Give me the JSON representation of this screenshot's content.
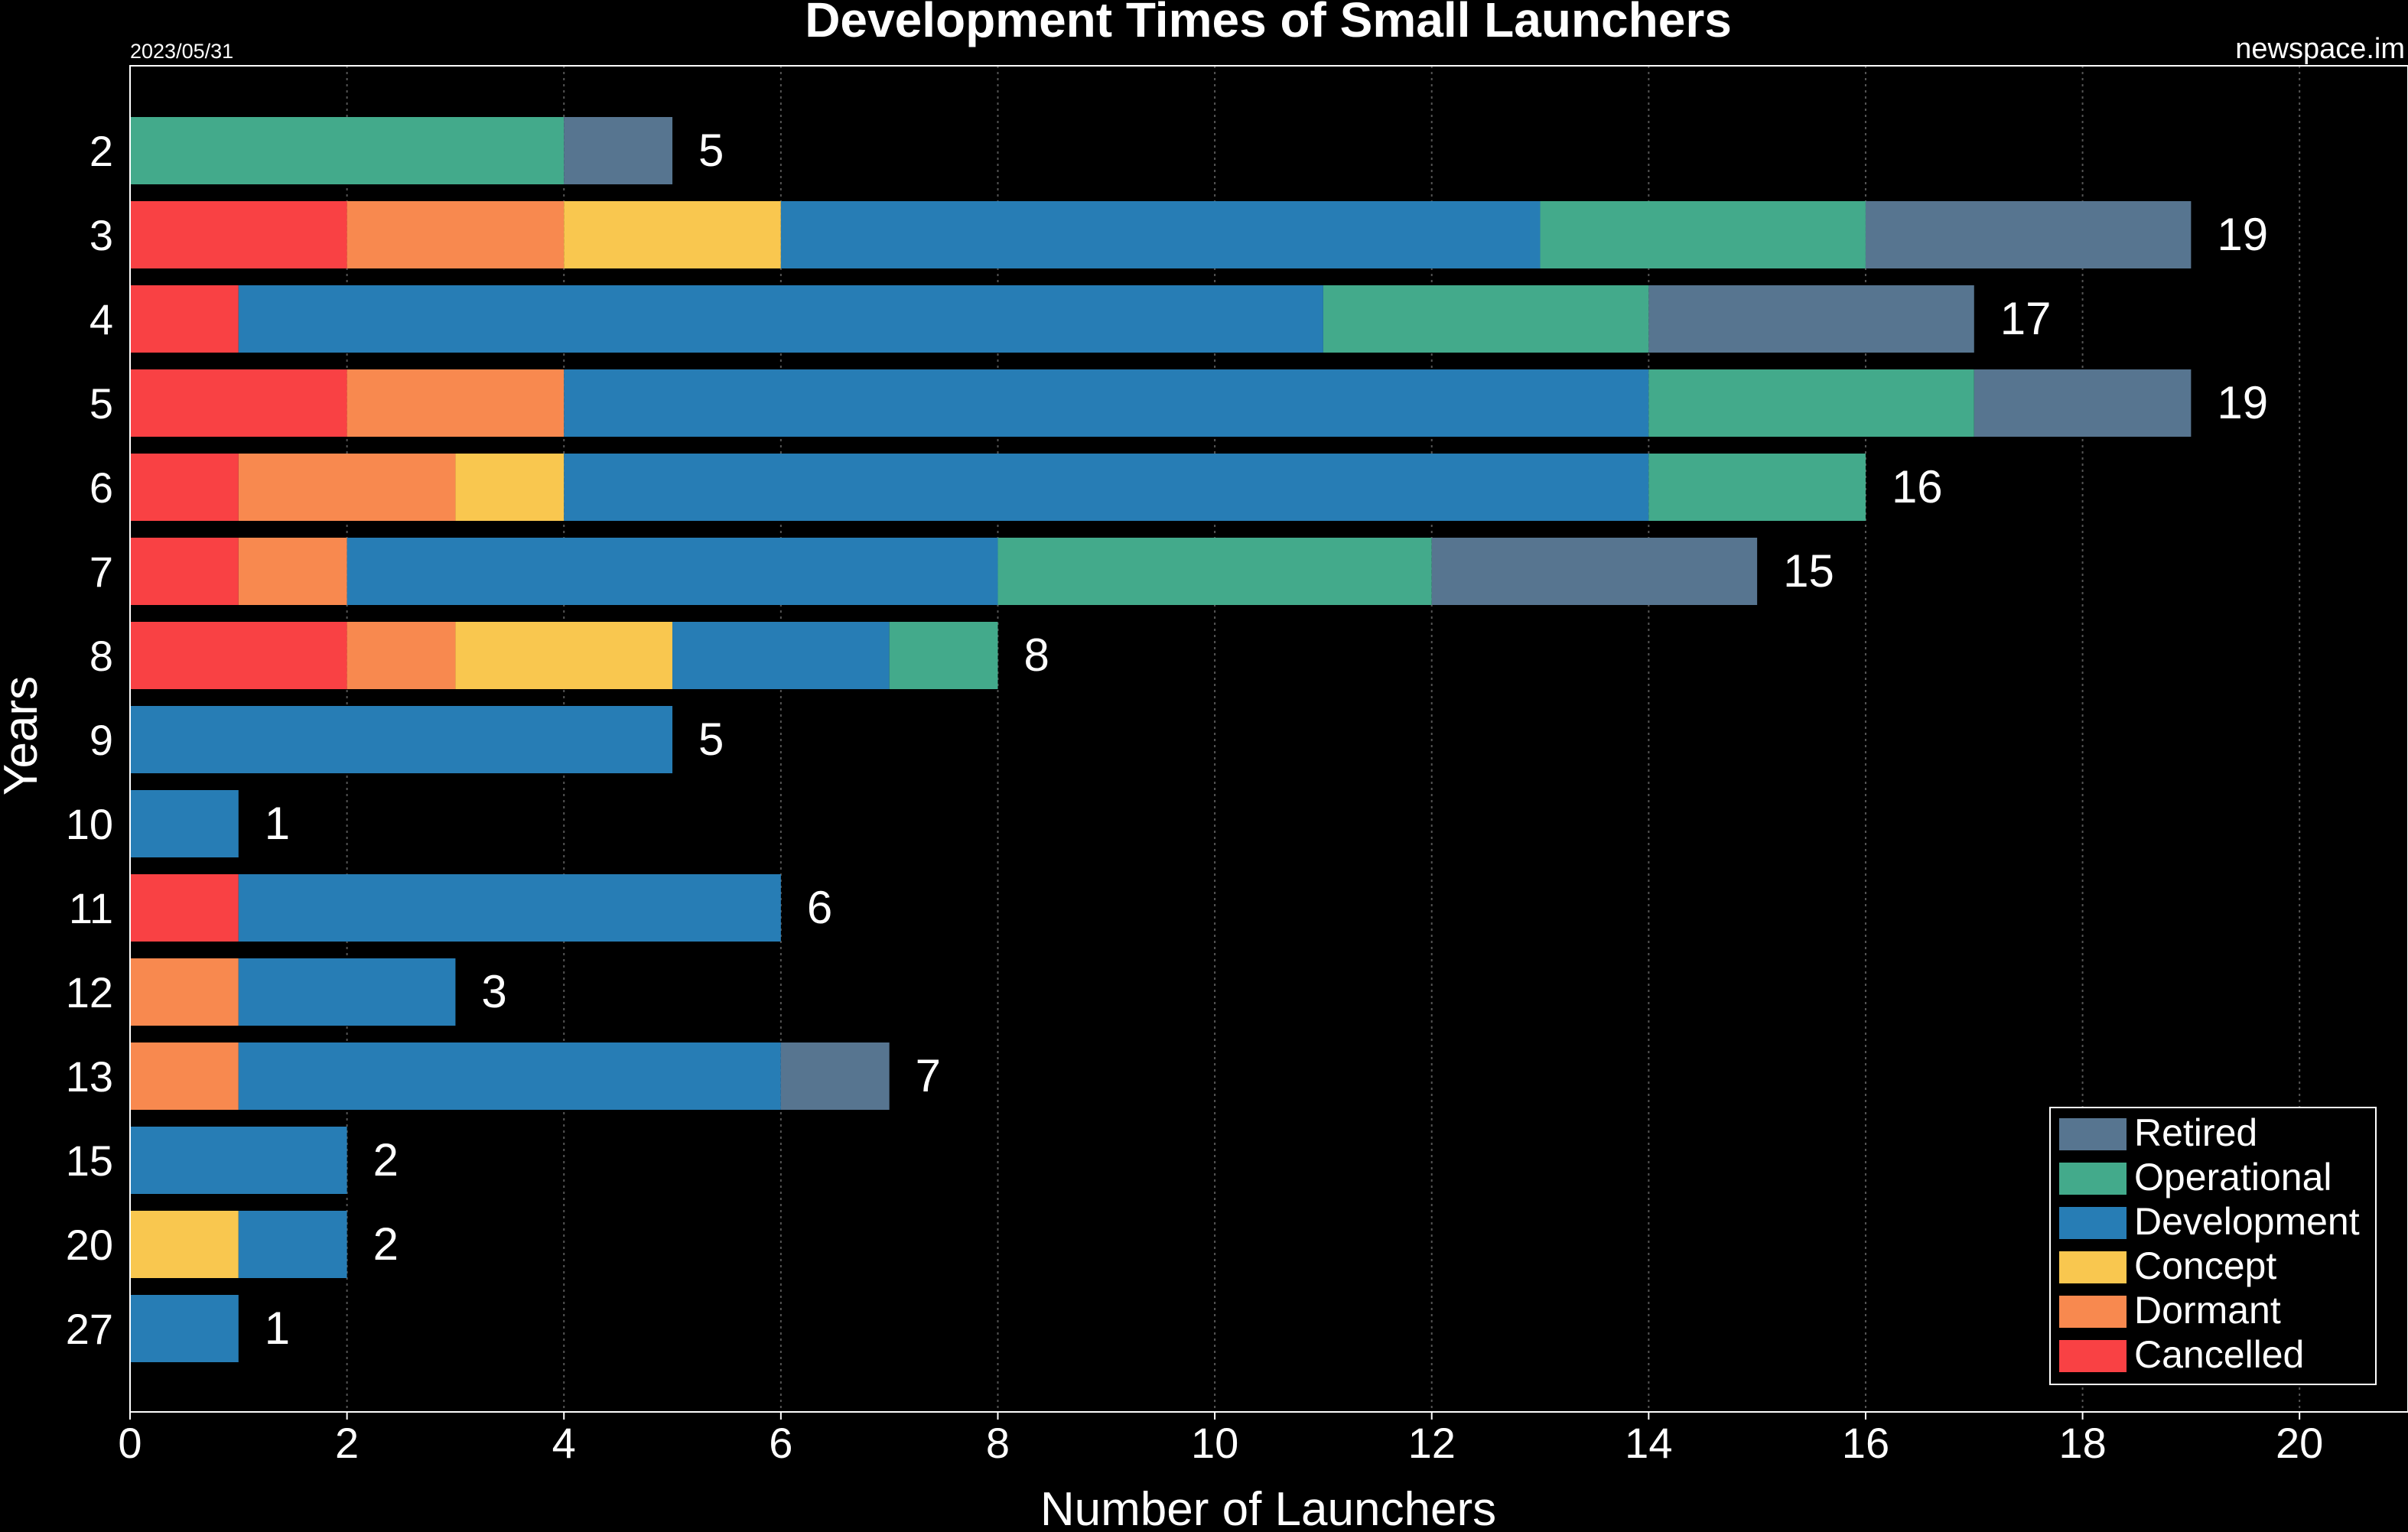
{
  "chart_data": {
    "type": "bar",
    "orientation": "horizontal",
    "stacked": true,
    "title": "Development Times of Small Launchers",
    "date_note": "2023/05/31",
    "source_note": "newspace.im",
    "xlabel": "Number of Launchers",
    "ylabel": "Years",
    "xlim": [
      0,
      21
    ],
    "x_ticks": [
      0,
      2,
      4,
      6,
      8,
      10,
      12,
      14,
      16,
      18,
      20
    ],
    "grid": "vertical",
    "legend_position": "bottom-right",
    "categories": [
      "2",
      "3",
      "4",
      "5",
      "6",
      "7",
      "8",
      "9",
      "10",
      "11",
      "12",
      "13",
      "15",
      "20",
      "27"
    ],
    "series": [
      {
        "name": "Cancelled",
        "color": "#f94144",
        "values": [
          0,
          2,
          1,
          2,
          1,
          1,
          2,
          0,
          0,
          1,
          0,
          0,
          0,
          0,
          0
        ]
      },
      {
        "name": "Dormant",
        "color": "#f8894f",
        "values": [
          0,
          2,
          0,
          2,
          2,
          1,
          1,
          0,
          0,
          0,
          1,
          1,
          0,
          0,
          0
        ]
      },
      {
        "name": "Concept",
        "color": "#f9c74f",
        "values": [
          0,
          2,
          0,
          0,
          1,
          0,
          2,
          0,
          0,
          0,
          0,
          0,
          0,
          1,
          0
        ]
      },
      {
        "name": "Development",
        "color": "#277db5",
        "values": [
          0,
          7,
          10,
          10,
          10,
          6,
          2,
          5,
          1,
          5,
          2,
          5,
          2,
          1,
          1
        ]
      },
      {
        "name": "Operational",
        "color": "#43aa8b",
        "values": [
          4,
          3,
          3,
          3,
          2,
          4,
          1,
          0,
          0,
          0,
          0,
          0,
          0,
          0,
          0
        ]
      },
      {
        "name": "Retired",
        "color": "#577590",
        "values": [
          1,
          3,
          3,
          2,
          0,
          3,
          0,
          0,
          0,
          0,
          0,
          1,
          0,
          0,
          0
        ]
      }
    ],
    "totals": [
      5,
      19,
      17,
      19,
      16,
      15,
      8,
      5,
      1,
      6,
      3,
      7,
      2,
      2,
      1
    ],
    "legend_order": [
      "Retired",
      "Operational",
      "Development",
      "Concept",
      "Dormant",
      "Cancelled"
    ]
  }
}
